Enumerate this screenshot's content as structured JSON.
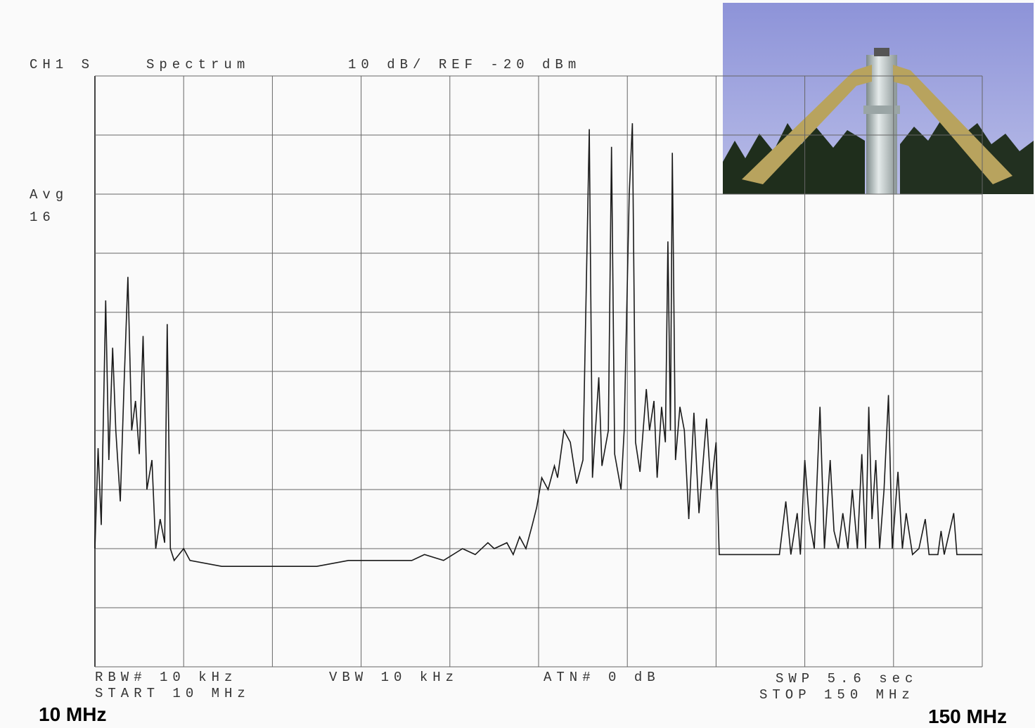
{
  "chart_data": {
    "type": "line",
    "annotations": [
      "CH1 S",
      "Spectrum",
      "10 dB/ REF -20 dBm",
      "Avg",
      "16",
      "RBW# 10 kHz",
      "START 10 MHz",
      "VBW 10 kHz",
      "ATN# 0 dB",
      "SWP 5.6 sec",
      "STOP 150 MHz",
      "10 MHz",
      "150 MHz"
    ],
    "xlim": [
      10,
      150
    ],
    "ylim": [
      -120,
      -20
    ],
    "xticks": [
      10,
      24,
      38,
      52,
      66,
      80,
      94,
      108,
      122,
      136,
      150
    ],
    "yticks": [
      -120,
      -110,
      -100,
      -90,
      -80,
      -70,
      -60,
      -50,
      -40,
      -30,
      -20
    ],
    "grid": true,
    "color": "#1a1a1a",
    "x": [
      10,
      10.5,
      11,
      11.7,
      12.2,
      12.8,
      13.3,
      14,
      14.6,
      15.2,
      15.8,
      16.4,
      17,
      17.6,
      18.2,
      19,
      19.6,
      20.3,
      21,
      21.4,
      21.9,
      22.5,
      24,
      25,
      30,
      35,
      40,
      45,
      50,
      55,
      60,
      62,
      65,
      68,
      70,
      72,
      73,
      75,
      76,
      77,
      78,
      79,
      79.7,
      80.5,
      81.5,
      82.5,
      83,
      84,
      85,
      86,
      87,
      88,
      88.5,
      89.5,
      90,
      91,
      91.5,
      92,
      93,
      93.5,
      94.3,
      94.8,
      95.3,
      96,
      97,
      97.5,
      98.2,
      98.7,
      99.4,
      100,
      100.4,
      100.8,
      101.1,
      101.6,
      102.3,
      103,
      103.7,
      104.5,
      105.3,
      106.5,
      107.2,
      108,
      108.5,
      110,
      113,
      115,
      118,
      119,
      119.8,
      120.8,
      121.3,
      122,
      122.7,
      123.5,
      124.4,
      125.1,
      126,
      126.6,
      127.3,
      128,
      128.8,
      129.5,
      130.3,
      131,
      131.6,
      132.1,
      132.6,
      133.2,
      133.8,
      134.5,
      135.2,
      135.8,
      136.7,
      137.4,
      138,
      139,
      140,
      141,
      141.6,
      143,
      143.5,
      144,
      145.5,
      146,
      150
    ],
    "values": [
      -100,
      -83,
      -96,
      -58,
      -85,
      -66,
      -80,
      -92,
      -72,
      -54,
      -80,
      -75,
      -84,
      -64,
      -90,
      -85,
      -100,
      -95,
      -99,
      -62,
      -100,
      -102,
      -100,
      -102,
      -103,
      -103,
      -103,
      -103,
      -102,
      -102,
      -102,
      -101,
      -102,
      -100,
      -101,
      -99,
      -100,
      -99,
      -101,
      -98,
      -100,
      -96,
      -93,
      -88,
      -90,
      -86,
      -88,
      -80,
      -82,
      -89,
      -85,
      -29,
      -88,
      -71,
      -86,
      -80,
      -32,
      -84,
      -90,
      -80,
      -40,
      -28,
      -82,
      -87,
      -73,
      -80,
      -75,
      -88,
      -76,
      -82,
      -48,
      -80,
      -33,
      -85,
      -76,
      -80,
      -95,
      -77,
      -94,
      -78,
      -90,
      -82,
      -101,
      -101,
      -101,
      -101,
      -101,
      -92,
      -101,
      -94,
      -101,
      -85,
      -95,
      -100,
      -76,
      -100,
      -85,
      -97,
      -100,
      -94,
      -100,
      -90,
      -100,
      -84,
      -100,
      -76,
      -95,
      -85,
      -100,
      -90,
      -74,
      -100,
      -87,
      -100,
      -94,
      -101,
      -100,
      -95,
      -101,
      -101,
      -97,
      -101,
      -94,
      -101,
      -101
    ]
  }
}
